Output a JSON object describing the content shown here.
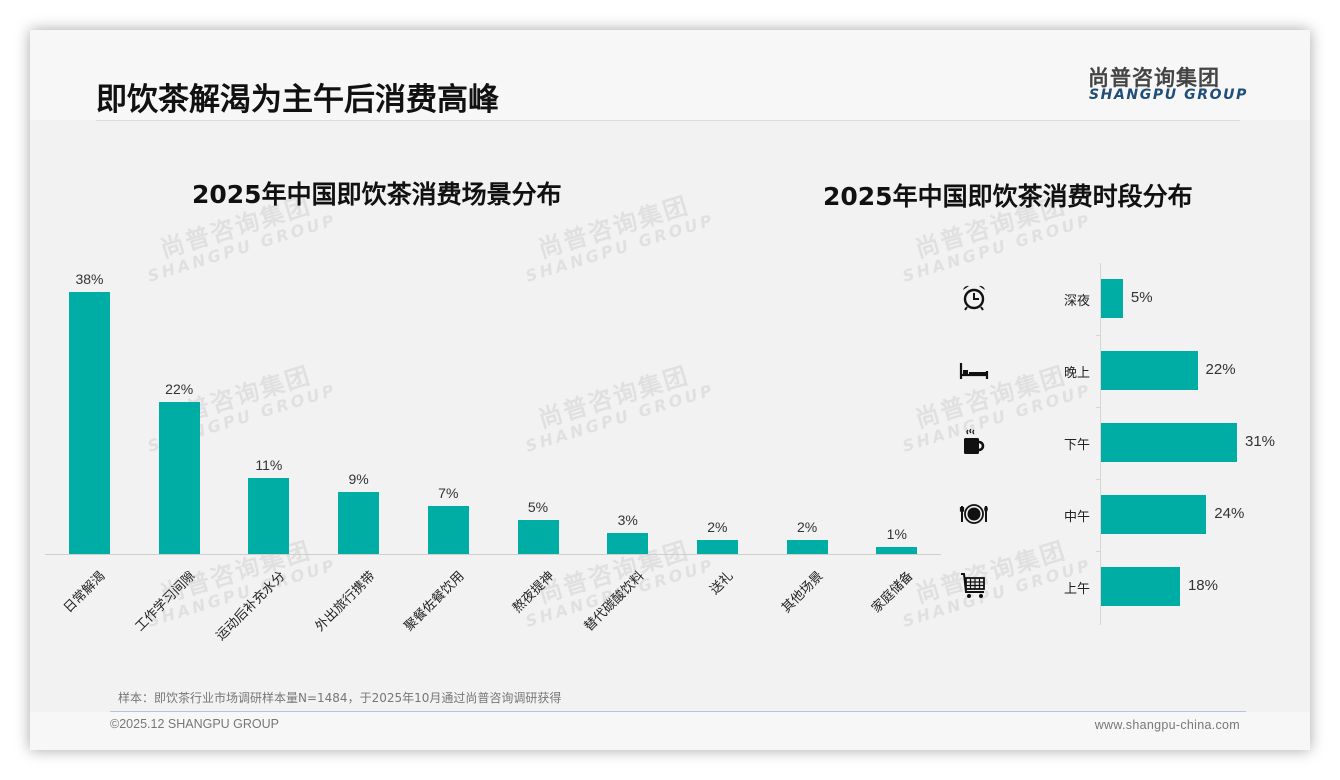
{
  "header": {
    "title": "即饮茶解渴为主午后消费高峰",
    "logo_cn": "尚普咨询集团",
    "logo_en": "SHANGPU GROUP"
  },
  "watermark": {
    "cn": "尚普咨询集团",
    "en": "SHANGPU GROUP"
  },
  "colors": {
    "bar": "#00ada4",
    "logo_en": "#1f4e79",
    "title": "#111111"
  },
  "left_chart": {
    "title": "2025年中国即饮茶消费场景分布",
    "items": [
      {
        "category": "日常解渴",
        "value": 38,
        "label": "38%"
      },
      {
        "category": "工作学习间隙",
        "value": 22,
        "label": "22%"
      },
      {
        "category": "运动后补充水分",
        "value": 11,
        "label": "11%"
      },
      {
        "category": "外出旅行携带",
        "value": 9,
        "label": "9%"
      },
      {
        "category": "聚餐佐餐饮用",
        "value": 7,
        "label": "7%"
      },
      {
        "category": "熬夜提神",
        "value": 5,
        "label": "5%"
      },
      {
        "category": "替代碳酸饮料",
        "value": 3,
        "label": "3%"
      },
      {
        "category": "送礼",
        "value": 2,
        "label": "2%"
      },
      {
        "category": "其他场景",
        "value": 2,
        "label": "2%"
      },
      {
        "category": "家庭储备",
        "value": 1,
        "label": "1%"
      }
    ]
  },
  "right_chart": {
    "title": "2025年中国即饮茶消费时段分布",
    "items": [
      {
        "category": "深夜",
        "value": 5,
        "label": "5%",
        "icon": "alarm-clock-icon"
      },
      {
        "category": "晚上",
        "value": 22,
        "label": "22%",
        "icon": "bed-icon"
      },
      {
        "category": "下午",
        "value": 31,
        "label": "31%",
        "icon": "coffee-mug-icon"
      },
      {
        "category": "中午",
        "value": 24,
        "label": "24%",
        "icon": "plate-cutlery-icon"
      },
      {
        "category": "上午",
        "value": 18,
        "label": "18%",
        "icon": "shopping-cart-icon"
      }
    ]
  },
  "chart_data": [
    {
      "type": "bar",
      "title": "2025年中国即饮茶消费场景分布",
      "categories": [
        "日常解渴",
        "工作学习间隙",
        "运动后补充水分",
        "外出旅行携带",
        "聚餐佐餐饮用",
        "熬夜提神",
        "替代碳酸饮料",
        "送礼",
        "其他场景",
        "家庭储备"
      ],
      "values": [
        38,
        22,
        11,
        9,
        7,
        5,
        3,
        2,
        2,
        1
      ],
      "unit": "%",
      "xlabel": "",
      "ylabel": "",
      "ylim": [
        0,
        38
      ],
      "grid": false,
      "legend": null,
      "data_labels": true
    },
    {
      "type": "bar",
      "orientation": "horizontal",
      "title": "2025年中国即饮茶消费时段分布",
      "categories": [
        "深夜",
        "晚上",
        "下午",
        "中午",
        "上午"
      ],
      "values": [
        5,
        22,
        31,
        24,
        18
      ],
      "unit": "%",
      "xlabel": "",
      "ylabel": "",
      "grid": false,
      "legend": null,
      "data_labels": true
    }
  ],
  "footer": {
    "note": "样本：即饮茶行业市场调研样本量N=1484，于2025年10月通过尚普咨询调研获得",
    "copyright": "©2025.12 SHANGPU GROUP",
    "website": "www.shangpu-china.com"
  }
}
